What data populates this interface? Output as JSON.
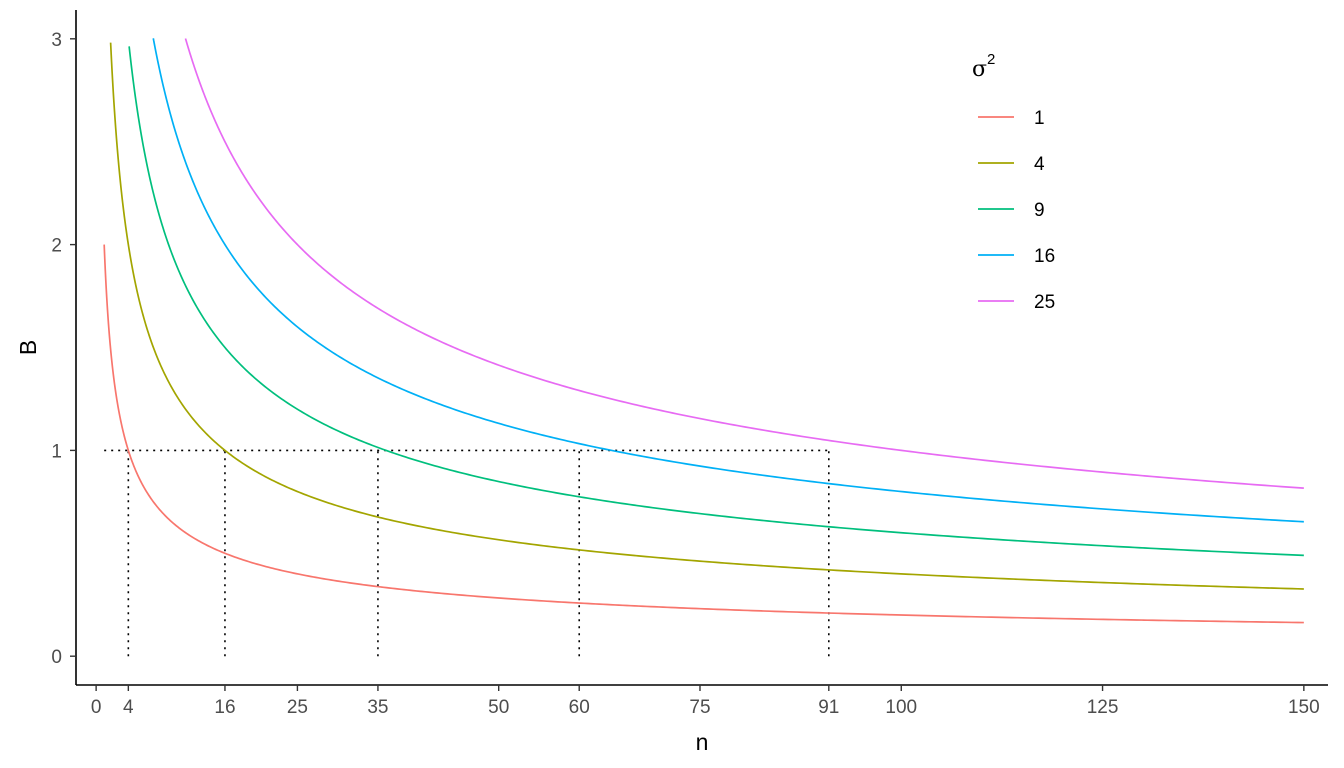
{
  "chart_data": {
    "type": "line",
    "xlabel": "n",
    "ylabel": "B",
    "xlim": [
      -2.5,
      153
    ],
    "ylim": [
      -0.14,
      3.14
    ],
    "x_ticks": [
      0,
      4,
      16,
      25,
      35,
      50,
      60,
      75,
      91,
      100,
      125,
      150
    ],
    "y_ticks": [
      0,
      1,
      2,
      3
    ],
    "grid": false,
    "legend": {
      "title_symbol": "σ",
      "title_superscript": "2",
      "position": "top-right"
    },
    "formula": "B = 2 * sqrt(sigma2 / n)",
    "series": [
      {
        "name": "1",
        "sigma2": 1,
        "color": "#F8766D",
        "x_start": 1.0,
        "x_end": 150
      },
      {
        "name": "4",
        "sigma2": 4,
        "color": "#A3A500",
        "x_start": 1.8,
        "x_end": 150
      },
      {
        "name": "9",
        "sigma2": 9,
        "color": "#00BF7D",
        "x_start": 4.1,
        "x_end": 150
      },
      {
        "name": "16",
        "sigma2": 16,
        "color": "#00B0F6",
        "x_start": 7.1,
        "x_end": 150
      },
      {
        "name": "25",
        "sigma2": 25,
        "color": "#E76BF3",
        "x_start": 11.1,
        "x_end": 150
      }
    ],
    "reference_lines": {
      "horizontal_y": 1,
      "horizontal_x_range": [
        1,
        91
      ],
      "vertical_x": [
        4,
        16,
        35,
        60,
        91
      ],
      "style": "dotted",
      "color": "#000000"
    }
  }
}
